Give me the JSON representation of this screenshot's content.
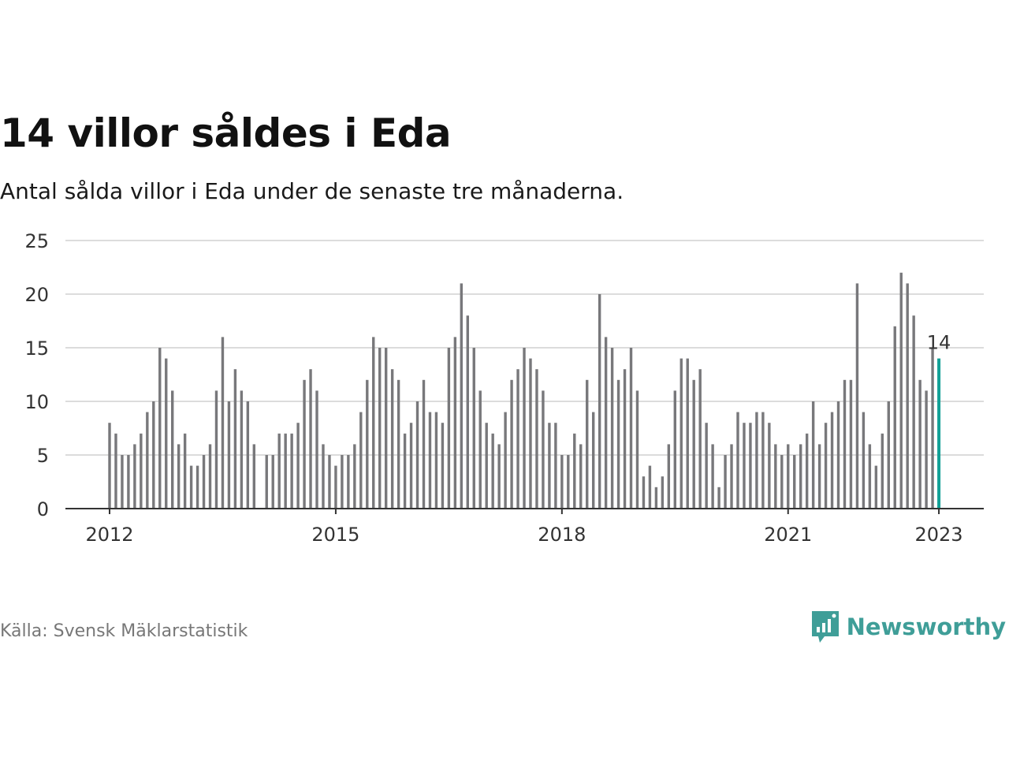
{
  "title": "14 villor såldes i Eda",
  "subtitle": "Antal sålda villor i Eda under de senaste tre månaderna.",
  "source": "Källa: Svensk Mäklarstatistik",
  "brand": {
    "name": "Newsworthy",
    "icon": "newsworthy-logo-icon"
  },
  "colors": {
    "bar": "#78787b",
    "highlight": "#12a096",
    "grid": "#dcdcdc",
    "axis": "#333333",
    "brand": "#3f9e98"
  },
  "chart_data": {
    "type": "bar",
    "title": "",
    "xlabel": "",
    "ylabel": "",
    "ylim": [
      0,
      25
    ],
    "yticks": [
      "0",
      "5",
      "10",
      "15",
      "20",
      "25"
    ],
    "xticks": [
      {
        "label": "2012",
        "x": "2012-01"
      },
      {
        "label": "2015",
        "x": "2015-01"
      },
      {
        "label": "2018",
        "x": "2018-01"
      },
      {
        "label": "2021",
        "x": "2021-01"
      },
      {
        "label": "2023",
        "x": "2023-01"
      }
    ],
    "grid": true,
    "highlight": {
      "x": "2023-01",
      "label": "14"
    },
    "x": [
      "2012-01",
      "2012-02",
      "2012-03",
      "2012-04",
      "2012-05",
      "2012-06",
      "2012-07",
      "2012-08",
      "2012-09",
      "2012-10",
      "2012-11",
      "2012-12",
      "2013-01",
      "2013-02",
      "2013-03",
      "2013-04",
      "2013-05",
      "2013-06",
      "2013-07",
      "2013-08",
      "2013-09",
      "2013-10",
      "2013-11",
      "2013-12",
      "2014-01",
      "2014-02",
      "2014-03",
      "2014-04",
      "2014-05",
      "2014-06",
      "2014-07",
      "2014-08",
      "2014-09",
      "2014-10",
      "2014-11",
      "2014-12",
      "2015-01",
      "2015-02",
      "2015-03",
      "2015-04",
      "2015-05",
      "2015-06",
      "2015-07",
      "2015-08",
      "2015-09",
      "2015-10",
      "2015-11",
      "2015-12",
      "2016-01",
      "2016-02",
      "2016-03",
      "2016-04",
      "2016-05",
      "2016-06",
      "2016-07",
      "2016-08",
      "2016-09",
      "2016-10",
      "2016-11",
      "2016-12",
      "2017-01",
      "2017-02",
      "2017-03",
      "2017-04",
      "2017-05",
      "2017-06",
      "2017-07",
      "2017-08",
      "2017-09",
      "2017-10",
      "2017-11",
      "2017-12",
      "2018-01",
      "2018-02",
      "2018-03",
      "2018-04",
      "2018-05",
      "2018-06",
      "2018-07",
      "2018-08",
      "2018-09",
      "2018-10",
      "2018-11",
      "2018-12",
      "2019-01",
      "2019-02",
      "2019-03",
      "2019-04",
      "2019-05",
      "2019-06",
      "2019-07",
      "2019-08",
      "2019-09",
      "2019-10",
      "2019-11",
      "2019-12",
      "2020-01",
      "2020-02",
      "2020-03",
      "2020-04",
      "2020-05",
      "2020-06",
      "2020-07",
      "2020-08",
      "2020-09",
      "2020-10",
      "2020-11",
      "2020-12",
      "2021-01",
      "2021-02",
      "2021-03",
      "2021-04",
      "2021-05",
      "2021-06",
      "2021-07",
      "2021-08",
      "2021-09",
      "2021-10",
      "2021-11",
      "2021-12",
      "2022-01",
      "2022-02",
      "2022-03",
      "2022-04",
      "2022-05",
      "2022-06",
      "2022-07",
      "2022-08",
      "2022-09",
      "2022-10",
      "2022-11",
      "2022-12",
      "2023-01"
    ],
    "values": [
      8,
      7,
      5,
      5,
      6,
      7,
      9,
      10,
      15,
      14,
      11,
      6,
      7,
      4,
      4,
      5,
      6,
      11,
      16,
      10,
      13,
      11,
      10,
      6,
      null,
      5,
      5,
      7,
      7,
      7,
      8,
      12,
      13,
      11,
      6,
      5,
      4,
      5,
      5,
      6,
      9,
      12,
      16,
      15,
      15,
      13,
      12,
      7,
      8,
      10,
      12,
      9,
      9,
      8,
      15,
      16,
      21,
      18,
      15,
      11,
      8,
      7,
      6,
      9,
      12,
      13,
      15,
      14,
      13,
      11,
      8,
      8,
      5,
      5,
      7,
      6,
      12,
      9,
      20,
      16,
      15,
      12,
      13,
      15,
      11,
      3,
      4,
      2,
      3,
      6,
      11,
      14,
      14,
      12,
      13,
      8,
      6,
      2,
      5,
      6,
      9,
      8,
      8,
      9,
      9,
      8,
      6,
      5,
      6,
      5,
      6,
      7,
      10,
      6,
      8,
      9,
      10,
      12,
      12,
      21,
      9,
      6,
      4,
      7,
      10,
      17,
      22,
      21,
      18,
      12,
      11,
      15,
      14
    ]
  }
}
